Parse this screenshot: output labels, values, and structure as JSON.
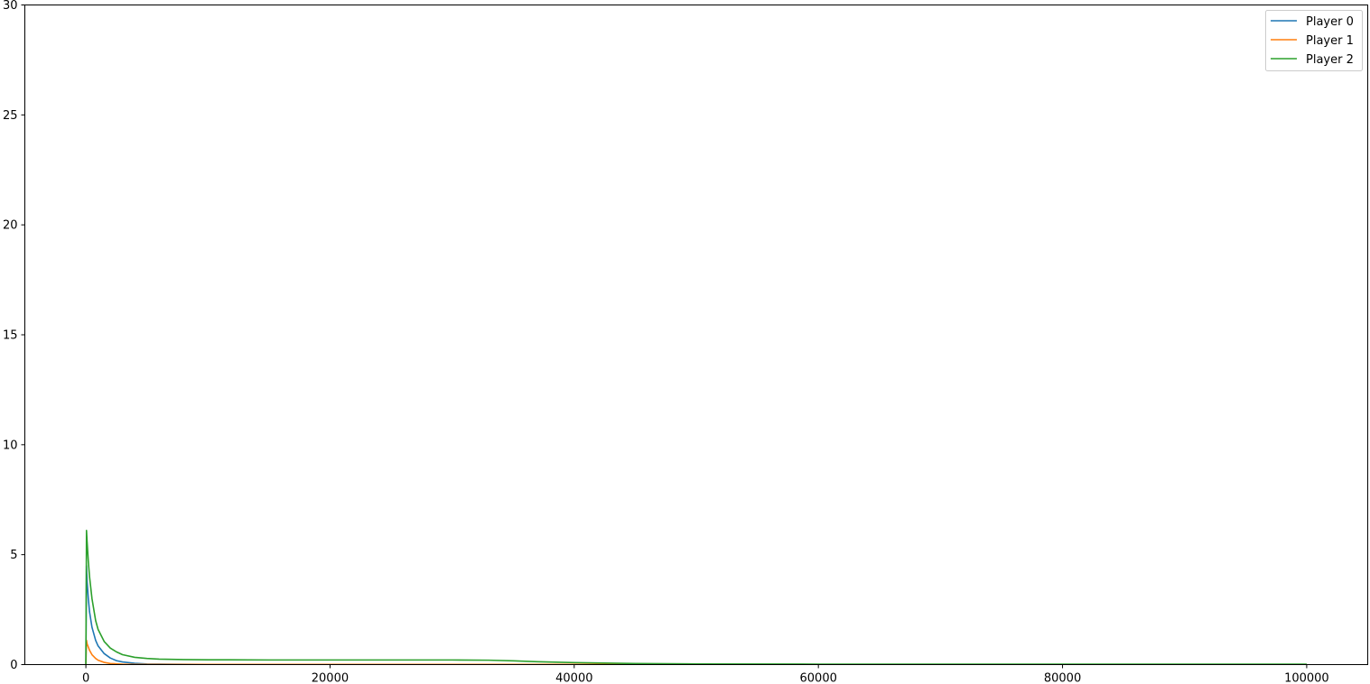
{
  "chart_data": {
    "type": "line",
    "title": "",
    "xlabel": "",
    "ylabel": "",
    "xlim": [
      -5000,
      105000
    ],
    "ylim": [
      0,
      30
    ],
    "x_ticks": [
      "0",
      "20000",
      "40000",
      "60000",
      "80000",
      "100000"
    ],
    "y_ticks": [
      "0",
      "5",
      "10",
      "15",
      "20",
      "25",
      "30"
    ],
    "grid": false,
    "legend_position": "top-right",
    "series": [
      {
        "name": "Player 0",
        "color": "#1f77b4",
        "x": [
          0,
          50,
          100,
          200,
          300,
          500,
          800,
          1000,
          1500,
          2000,
          2500,
          3000,
          4000,
          5000,
          7000,
          10000,
          20000,
          40000,
          60000,
          100000
        ],
        "y": [
          0,
          4.5,
          3.8,
          3.0,
          2.4,
          1.7,
          1.1,
          0.85,
          0.5,
          0.3,
          0.18,
          0.12,
          0.06,
          0.03,
          0.02,
          0.01,
          0.01,
          0.01,
          0.01,
          0.01
        ]
      },
      {
        "name": "Player 1",
        "color": "#ff7f0e",
        "x": [
          0,
          50,
          100,
          200,
          300,
          500,
          800,
          1000,
          1500,
          2000,
          3000,
          4000,
          6000,
          10000,
          40000,
          100000
        ],
        "y": [
          0,
          1.1,
          0.95,
          0.8,
          0.65,
          0.45,
          0.28,
          0.2,
          0.1,
          0.05,
          0.02,
          0.01,
          0.01,
          0.01,
          0.01,
          0.01
        ]
      },
      {
        "name": "Player 2",
        "color": "#2ca02c",
        "x": [
          0,
          50,
          100,
          200,
          300,
          500,
          800,
          1000,
          1500,
          2000,
          2500,
          3000,
          4000,
          5000,
          6000,
          8000,
          10000,
          15000,
          20000,
          25000,
          30000,
          33000,
          35000,
          37000,
          40000,
          45000,
          50000,
          60000,
          80000,
          100000
        ],
        "y": [
          0,
          6.1,
          5.6,
          4.7,
          4.0,
          3.0,
          2.0,
          1.6,
          1.05,
          0.75,
          0.58,
          0.45,
          0.33,
          0.28,
          0.25,
          0.23,
          0.22,
          0.21,
          0.21,
          0.21,
          0.21,
          0.2,
          0.17,
          0.13,
          0.09,
          0.05,
          0.03,
          0.02,
          0.02,
          0.02
        ]
      }
    ]
  }
}
